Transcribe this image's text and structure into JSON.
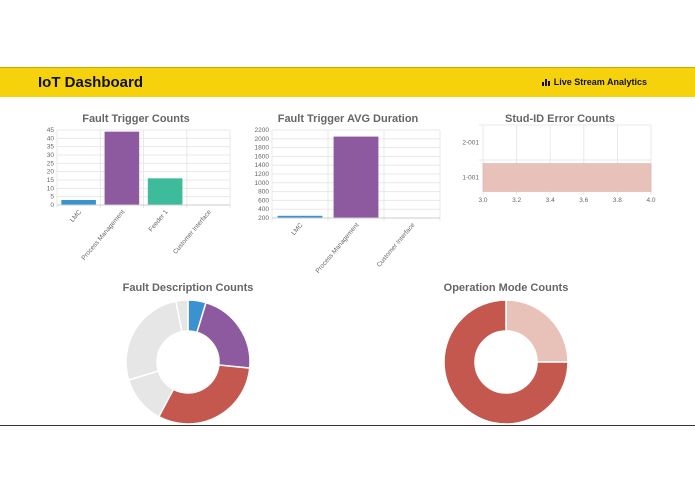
{
  "header": {
    "title": "IoT Dashboard",
    "link_icon": "bar-chart-icon",
    "link_label": "Live Stream Analytics",
    "color": "#f6d20c"
  },
  "chart_data": [
    {
      "type": "bar",
      "title": "Fault Trigger Counts",
      "categories": [
        "LMC",
        "Process Management",
        "Feeder 1",
        "Customer Interface"
      ],
      "values": [
        3,
        44,
        16,
        0
      ],
      "colors": [
        "#3a93d0",
        "#8d5aa0",
        "#3dbb9b",
        "#cccccc"
      ],
      "ylim": [
        0,
        45
      ],
      "yticks": [
        0,
        5,
        10,
        15,
        20,
        25,
        30,
        35,
        40,
        45
      ],
      "grid": true
    },
    {
      "type": "bar",
      "title": "Fault Trigger AVG Duration",
      "categories": [
        "LMC",
        "Process Management",
        "Customer Interface"
      ],
      "values": [
        250,
        2050,
        200
      ],
      "colors": [
        "#3a93d0",
        "#8d5aa0",
        "#cccccc"
      ],
      "ylim": [
        200,
        2200
      ],
      "yticks": [
        200,
        400,
        600,
        800,
        1000,
        1200,
        1400,
        1600,
        1800,
        2000,
        2200
      ],
      "grid": true
    },
    {
      "type": "bar",
      "orientation": "horizontal",
      "title": "Stud-ID Error Counts",
      "categories": [
        "2-001",
        "1-001"
      ],
      "values": [
        null,
        4
      ],
      "colors": [
        "#e8c2b8"
      ],
      "xlim": [
        3.0,
        4.0
      ],
      "xticks": [
        "3.0",
        "3.2",
        "3.4",
        "3.6",
        "3.8",
        "4.0"
      ],
      "grid": true
    },
    {
      "type": "pie",
      "donut": true,
      "title": "Fault Description Counts",
      "values": [
        3,
        14,
        20,
        8,
        17,
        2
      ],
      "colors": [
        "#3a93d0",
        "#8d5aa0",
        "#c4574e",
        "#e6e6e6",
        "#e6e6e6",
        "#e6e6e6"
      ]
    },
    {
      "type": "pie",
      "donut": true,
      "title": "Operation Mode Counts",
      "values": [
        1,
        3
      ],
      "colors": [
        "#e8c2b8",
        "#c4574e"
      ]
    }
  ]
}
